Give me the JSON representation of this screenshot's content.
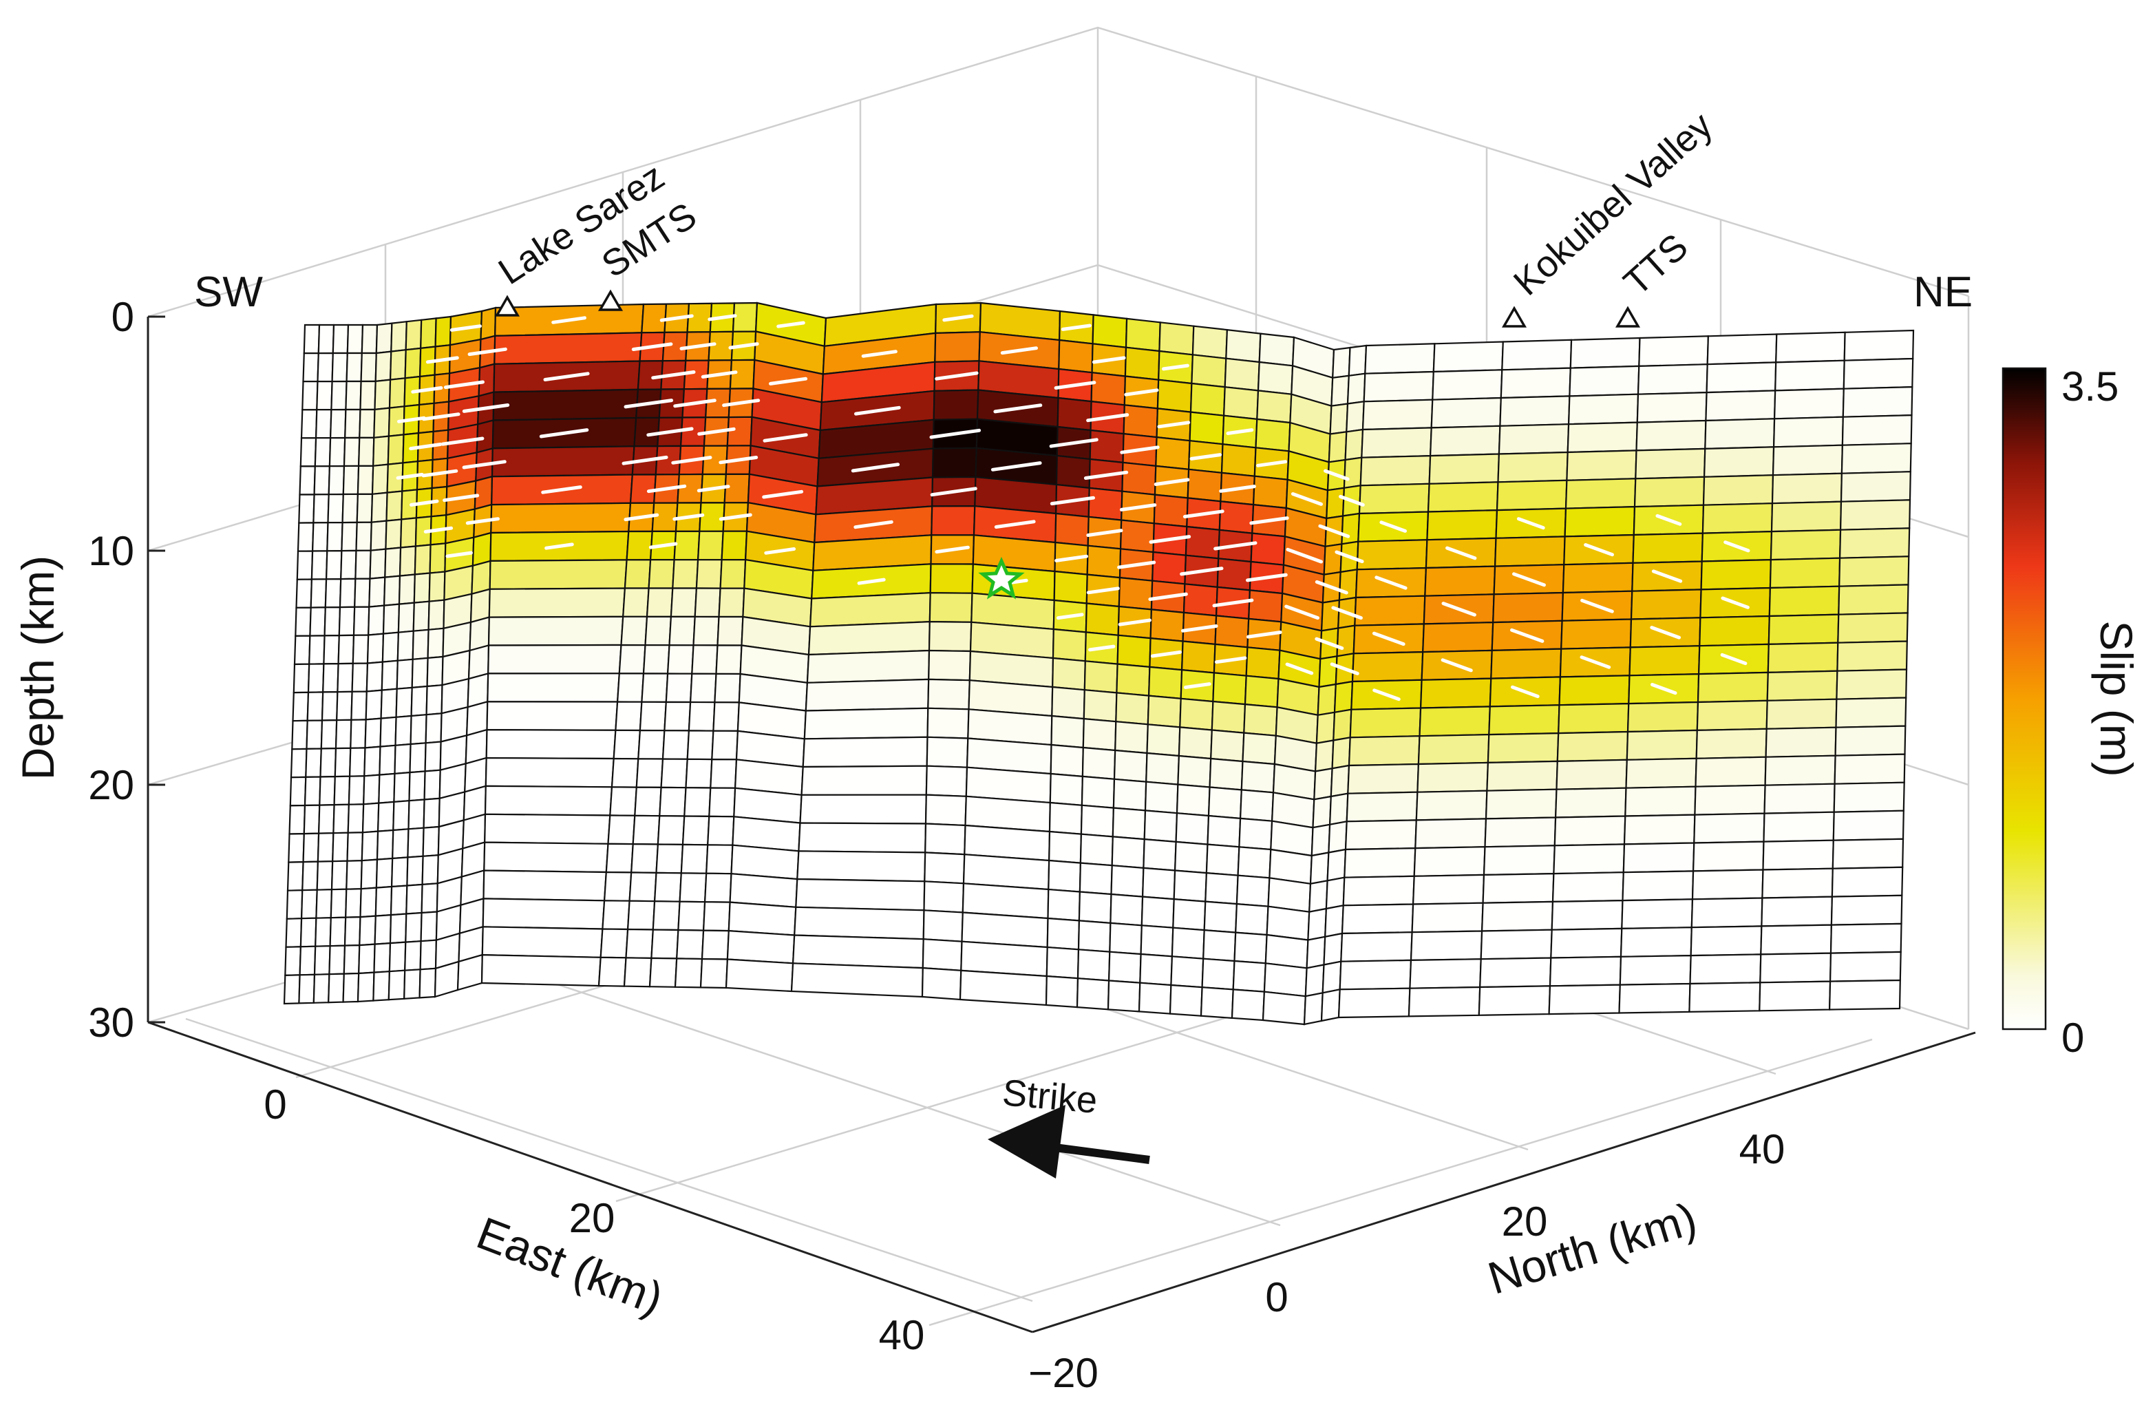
{
  "chart_data": {
    "type": "heatmap",
    "title": "",
    "description_of_plot": "3D finite-fault slip distribution",
    "axes": {
      "depth": {
        "label": "Depth (km)",
        "ticks": [
          0,
          10,
          20,
          30
        ],
        "range": [
          0,
          30
        ]
      },
      "east": {
        "label": "East (km)",
        "ticks": [
          0,
          20,
          40
        ],
        "range": [
          -10,
          48
        ]
      },
      "north": {
        "label": "North (km)",
        "ticks": [
          -20,
          0,
          20,
          40
        ],
        "range": [
          -20,
          48
        ]
      }
    },
    "colorbar": {
      "label": "Slip (m)",
      "min": 0,
      "max": 3.5,
      "tick_labels": [
        "3.5",
        "0"
      ]
    },
    "direction_labels": {
      "left": "SW",
      "right": "NE"
    },
    "strike_label": "Strike",
    "surface_sites": [
      {
        "name": "Lake Sarez",
        "along_strike_km": 9
      },
      {
        "name": "SMTS",
        "along_strike_km": 14
      },
      {
        "name": "Kokuibel Valley",
        "along_strike_km": 56
      },
      {
        "name": "TTS",
        "along_strike_km": 61
      }
    ],
    "fault_grid": {
      "columns": 40,
      "rows": 24,
      "depth_range_km": [
        0,
        30
      ]
    },
    "slip_peaks_m": [
      {
        "along_strike_col": 13,
        "depth_km": 5,
        "slip": 3.3
      },
      {
        "along_strike_col": 21,
        "depth_km": 6,
        "slip": 3.5
      },
      {
        "along_strike_col": 27,
        "depth_km": 10,
        "slip": 2.7
      },
      {
        "along_strike_col": 34,
        "depth_km": 12,
        "slip": 1.9
      }
    ],
    "hypocenter": {
      "depth_km": 11.3,
      "marker": "star",
      "color": "#22cc22"
    }
  }
}
